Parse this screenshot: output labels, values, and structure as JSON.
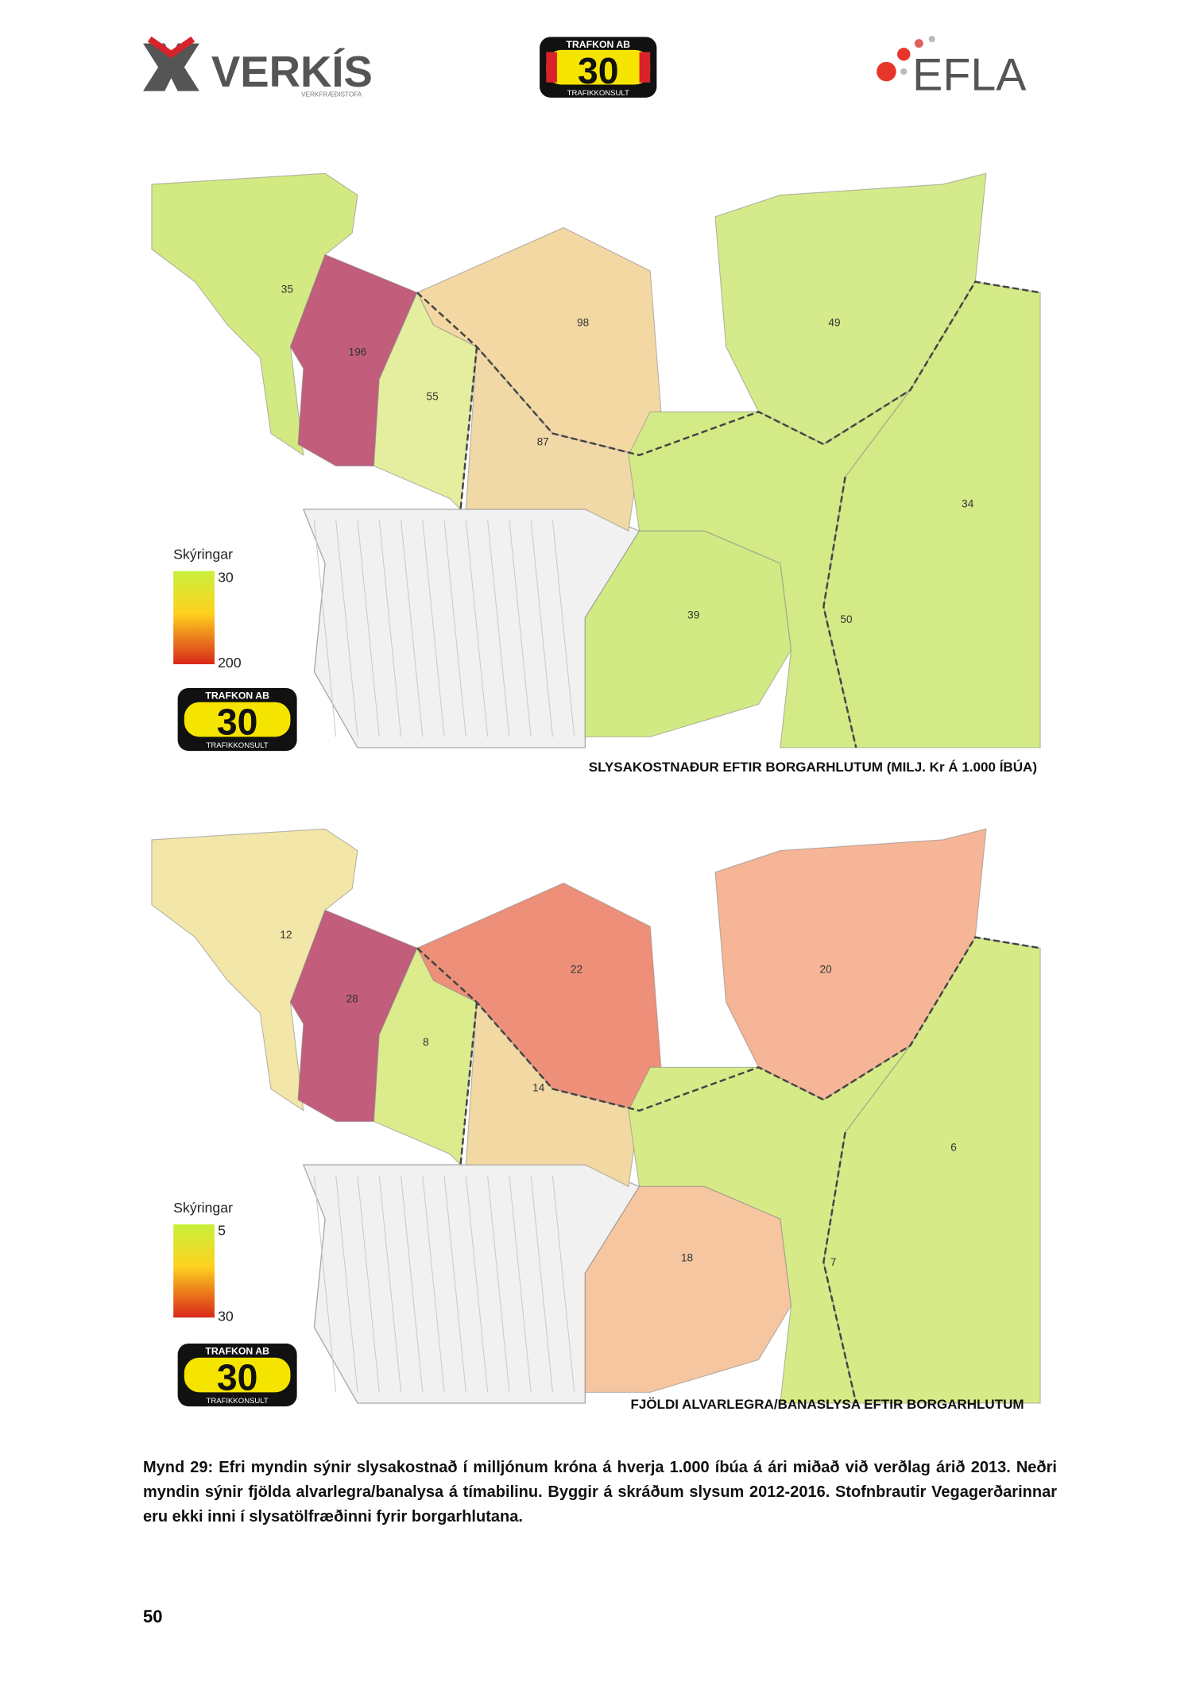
{
  "header": {
    "logos": [
      {
        "name": "VERKÍS",
        "sub": "VERKFRÆÐISTOFA"
      },
      {
        "name": "30",
        "top": "TRAFKON AB",
        "sub": "TRAFIKKONSULT"
      },
      {
        "name": "EFLA"
      }
    ]
  },
  "maps": [
    {
      "caption": "SLYSAKOSTNAÐUR EFTIR BORGARHLUTUM (MILJ. Kr Á 1.000 ÍBÚA)",
      "legend": {
        "title": "Skýringar",
        "min": 30,
        "max": 200
      },
      "regions": [
        {
          "label": 35,
          "color": "#d3ea82"
        },
        {
          "label": 196,
          "color": "#c25d7b"
        },
        {
          "label": 98,
          "color": "#f3d8a4"
        },
        {
          "label": 55,
          "color": "#e4ee9e"
        },
        {
          "label": 87,
          "color": "#f0d9a6"
        },
        {
          "label": 49,
          "color": "#d5ea8a"
        },
        {
          "label": 34,
          "color": "#d4ea86"
        },
        {
          "label": 50,
          "color": "#d4ea86"
        },
        {
          "label": 39,
          "color": "#d2ea84"
        }
      ]
    },
    {
      "caption": "FJÖLDI ALVARLEGRA/BANASLYSA EFTIR BORGARHLUTUM",
      "legend": {
        "title": "Skýringar",
        "min": 5,
        "max": 30
      },
      "regions": [
        {
          "label": 12,
          "color": "#f2e6a8"
        },
        {
          "label": 28,
          "color": "#c25d7b"
        },
        {
          "label": 22,
          "color": "#ee8f7a"
        },
        {
          "label": 8,
          "color": "#dcec8c"
        },
        {
          "label": 14,
          "color": "#f2d9a4"
        },
        {
          "label": 20,
          "color": "#f5b596"
        },
        {
          "label": 6,
          "color": "#d6eb88"
        },
        {
          "label": 7,
          "color": "#d6eb88"
        },
        {
          "label": 18,
          "color": "#f5c6a0"
        }
      ]
    }
  ],
  "figure_caption": "Mynd 29: Efri myndin sýnir slysakostnað í milljónum króna á hverja 1.000 íbúa á ári miðað við verðlag árið 2013. Neðri myndin sýnir fjölda alvarlegra/banalysa á tímabilinu. Byggir á skráðum slysum 2012-2016. Stofnbrautir Vegagerðarinnar eru ekki inni í slysatölfræðinni fyrir borgarhlutana.",
  "page_number": 50
}
